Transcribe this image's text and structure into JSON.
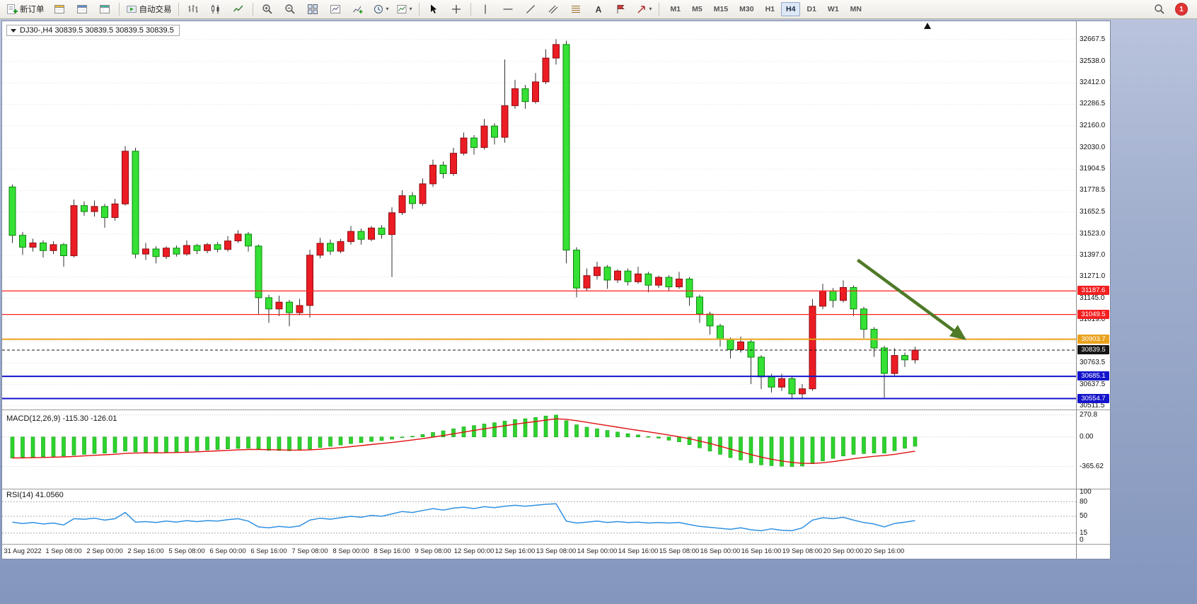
{
  "toolbar": {
    "new_order_label": "新订单",
    "auto_trading_label": "自动交易",
    "timeframes": [
      "M1",
      "M5",
      "M15",
      "M30",
      "H1",
      "H4",
      "D1",
      "W1",
      "MN"
    ],
    "active_timeframe": "H4",
    "notification_count": "1"
  },
  "icons": {
    "text_tool_glyph": "A",
    "dropdown_caret": "▾"
  },
  "chart": {
    "symbol_ohlc": "DJ30-,H4 30839.5 30839.5 30839.5 30839.5",
    "axis_labels": [
      "32667.5",
      "32538.0",
      "32412.0",
      "32286.5",
      "32160.0",
      "32030.0",
      "31904.5",
      "31778.5",
      "31652.5",
      "31523.0",
      "31397.0",
      "31271.0",
      "31145.0",
      "31019.0",
      "30763.5",
      "30637.5",
      "30511.5"
    ],
    "gridlines": [
      32667.5,
      32538.0,
      32412.0,
      32286.5,
      32160.0,
      32030.0,
      31904.5,
      31778.5,
      31652.5,
      31523.0,
      31397.0,
      31271.0,
      31145.0,
      31019.0,
      30893.0,
      30763.5,
      30637.5,
      30511.5
    ],
    "hlines": [
      {
        "value": 31187.6,
        "color": "#ff2020",
        "width": 1.2
      },
      {
        "value": 31049.5,
        "color": "#ff2020",
        "width": 1.2
      },
      {
        "value": 30903.7,
        "color": "#eaa21e",
        "width": 2
      },
      {
        "value": 30685.1,
        "color": "#1414cc",
        "width": 2
      },
      {
        "value": 30554.7,
        "color": "#1414cc",
        "width": 2
      }
    ],
    "current_price": {
      "label": "30839.5",
      "value": 30839.5,
      "color": "#151515"
    },
    "badges": [
      {
        "label": "31187.6",
        "value": 31187.6,
        "color": "#f42020"
      },
      {
        "label": "31049.5",
        "value": 31049.5,
        "color": "#f42020"
      },
      {
        "label": "30903.7",
        "value": 30903.7,
        "color": "#eaa21e"
      },
      {
        "label": "30839.5",
        "value": 30839.5,
        "color": "#151515"
      },
      {
        "label": "30685.1",
        "value": 30685.1,
        "color": "#1414cc"
      },
      {
        "label": "30554.7",
        "value": 30554.7,
        "color": "#1414cc"
      }
    ]
  },
  "macd_panel": {
    "name": "MACD(12,26,9)",
    "values": "-115.30 -126.01",
    "axis": [
      {
        "label": "270.8",
        "v": 270.8
      },
      {
        "label": "0.00",
        "v": 0
      },
      {
        "label": "-365.62",
        "v": -365.62
      }
    ]
  },
  "rsi_panel": {
    "name": "RSI(14)",
    "value": "41.0560",
    "axis": [
      {
        "label": "100",
        "v": 100
      },
      {
        "label": "80",
        "v": 80
      },
      {
        "label": "50",
        "v": 50
      },
      {
        "label": "15",
        "v": 15
      },
      {
        "label": "0",
        "v": 0
      }
    ],
    "levels": [
      80,
      50,
      15
    ]
  },
  "annotation_arrow": {
    "from_index": 82.4,
    "from_price": 31370,
    "to_index": 92.8,
    "to_price": 30908,
    "color": "#4f7a28"
  },
  "chart_data": [
    {
      "type": "candlestick",
      "title": "DJ30- H4",
      "ylim": [
        30490,
        32775
      ],
      "colors": {
        "bull": "#ec1c24",
        "bull_border": "#8f0d12",
        "bear": "#35e135",
        "bear_border": "#0c870c",
        "wick": "#333333"
      },
      "x_ticks": [
        {
          "i": 1,
          "label": "31 Aug 2022"
        },
        {
          "i": 5,
          "label": "1 Sep 08:00"
        },
        {
          "i": 9,
          "label": "2 Sep 00:00"
        },
        {
          "i": 13,
          "label": "2 Sep 16:00"
        },
        {
          "i": 17,
          "label": "5 Sep 08:00"
        },
        {
          "i": 21,
          "label": "6 Sep 00:00"
        },
        {
          "i": 25,
          "label": "6 Sep 16:00"
        },
        {
          "i": 29,
          "label": "7 Sep 08:00"
        },
        {
          "i": 33,
          "label": "8 Sep 00:00"
        },
        {
          "i": 37,
          "label": "8 Sep 16:00"
        },
        {
          "i": 41,
          "label": "9 Sep 08:00"
        },
        {
          "i": 45,
          "label": "12 Sep 00:00"
        },
        {
          "i": 49,
          "label": "12 Sep 16:00"
        },
        {
          "i": 53,
          "label": "13 Sep 08:00"
        },
        {
          "i": 57,
          "label": "14 Sep 00:00"
        },
        {
          "i": 61,
          "label": "14 Sep 16:00"
        },
        {
          "i": 65,
          "label": "15 Sep 08:00"
        },
        {
          "i": 69,
          "label": "16 Sep 00:00"
        },
        {
          "i": 73,
          "label": "16 Sep 16:00"
        },
        {
          "i": 77,
          "label": "19 Sep 08:00"
        },
        {
          "i": 81,
          "label": "20 Sep 00:00"
        },
        {
          "i": 85,
          "label": "20 Sep 16:00"
        }
      ],
      "candles": [
        [
          31800,
          31815,
          31470,
          31515
        ],
        [
          31515,
          31535,
          31400,
          31445
        ],
        [
          31445,
          31495,
          31420,
          31470
        ],
        [
          31470,
          31485,
          31385,
          31425
        ],
        [
          31425,
          31480,
          31405,
          31460
        ],
        [
          31460,
          31470,
          31330,
          31395
        ],
        [
          31395,
          31725,
          31385,
          31690
        ],
        [
          31690,
          31715,
          31630,
          31655
        ],
        [
          31655,
          31720,
          31625,
          31685
        ],
        [
          31685,
          31700,
          31560,
          31620
        ],
        [
          31620,
          31730,
          31600,
          31700
        ],
        [
          31700,
          32040,
          31690,
          32010
        ],
        [
          32010,
          32030,
          31380,
          31405
        ],
        [
          31405,
          31470,
          31370,
          31435
        ],
        [
          31435,
          31450,
          31350,
          31390
        ],
        [
          31390,
          31450,
          31375,
          31440
        ],
        [
          31440,
          31455,
          31390,
          31405
        ],
        [
          31405,
          31485,
          31395,
          31455
        ],
        [
          31455,
          31465,
          31405,
          31425
        ],
        [
          31425,
          31470,
          31410,
          31460
        ],
        [
          31460,
          31475,
          31415,
          31432
        ],
        [
          31432,
          31510,
          31420,
          31482
        ],
        [
          31482,
          31545,
          31470,
          31522
        ],
        [
          31522,
          31535,
          31420,
          31452
        ],
        [
          31452,
          31460,
          31050,
          31148
        ],
        [
          31148,
          31165,
          31000,
          31082
        ],
        [
          31082,
          31160,
          31040,
          31122
        ],
        [
          31122,
          31135,
          30980,
          31060
        ],
        [
          31060,
          31140,
          31045,
          31102
        ],
        [
          31102,
          31430,
          31030,
          31398
        ],
        [
          31398,
          31500,
          31380,
          31468
        ],
        [
          31468,
          31490,
          31400,
          31422
        ],
        [
          31422,
          31495,
          31410,
          31478
        ],
        [
          31478,
          31570,
          31460,
          31538
        ],
        [
          31538,
          31555,
          31460,
          31492
        ],
        [
          31492,
          31570,
          31480,
          31558
        ],
        [
          31558,
          31575,
          31495,
          31520
        ],
        [
          31520,
          31680,
          31270,
          31648
        ],
        [
          31648,
          31780,
          31635,
          31748
        ],
        [
          31748,
          31770,
          31670,
          31702
        ],
        [
          31702,
          31850,
          31690,
          31818
        ],
        [
          31818,
          31960,
          31800,
          31928
        ],
        [
          31928,
          31950,
          31850,
          31878
        ],
        [
          31878,
          32030,
          31865,
          31998
        ],
        [
          31998,
          32120,
          31985,
          32088
        ],
        [
          32088,
          32105,
          31990,
          32032
        ],
        [
          32032,
          32200,
          32020,
          32158
        ],
        [
          32158,
          32175,
          32050,
          32092
        ],
        [
          32092,
          32550,
          32060,
          32278
        ],
        [
          32278,
          32430,
          32260,
          32378
        ],
        [
          32378,
          32400,
          32260,
          32302
        ],
        [
          32302,
          32470,
          32290,
          32418
        ],
        [
          32418,
          32610,
          32405,
          32558
        ],
        [
          32558,
          32670,
          32520,
          32638
        ],
        [
          32638,
          32660,
          31350,
          31428
        ],
        [
          31428,
          31445,
          31150,
          31205
        ],
        [
          31205,
          31320,
          31185,
          31278
        ],
        [
          31278,
          31360,
          31255,
          31328
        ],
        [
          31328,
          31340,
          31200,
          31252
        ],
        [
          31252,
          31315,
          31235,
          31305
        ],
        [
          31305,
          31320,
          31220,
          31242
        ],
        [
          31242,
          31330,
          31230,
          31288
        ],
        [
          31288,
          31300,
          31180,
          31222
        ],
        [
          31222,
          31278,
          31205,
          31268
        ],
        [
          31268,
          31280,
          31190,
          31212
        ],
        [
          31212,
          31300,
          31200,
          31258
        ],
        [
          31258,
          31270,
          31100,
          31152
        ],
        [
          31152,
          31165,
          31000,
          31052
        ],
        [
          31052,
          31065,
          30930,
          30982
        ],
        [
          30982,
          30995,
          30860,
          30902
        ],
        [
          30902,
          30915,
          30790,
          30842
        ],
        [
          30842,
          30920,
          30825,
          30888
        ],
        [
          30888,
          30900,
          30640,
          30798
        ],
        [
          30798,
          30810,
          30610,
          30682
        ],
        [
          30682,
          30700,
          30590,
          30622
        ],
        [
          30622,
          30700,
          30600,
          30672
        ],
        [
          30672,
          30685,
          30550,
          30582
        ],
        [
          30582,
          30640,
          30555,
          30612
        ],
        [
          30612,
          31140,
          30600,
          31098
        ],
        [
          31098,
          31230,
          31080,
          31188
        ],
        [
          31188,
          31205,
          31090,
          31132
        ],
        [
          31132,
          31250,
          31120,
          31208
        ],
        [
          31208,
          31220,
          31040,
          31082
        ],
        [
          31082,
          31095,
          30910,
          30962
        ],
        [
          30962,
          30975,
          30800,
          30852
        ],
        [
          30852,
          30865,
          30560,
          30702
        ],
        [
          30702,
          30850,
          30690,
          30808
        ],
        [
          30808,
          30825,
          30740,
          30782
        ],
        [
          30782,
          30860,
          30760,
          30839.5
        ]
      ]
    },
    {
      "type": "bar",
      "title": "MACD(12,26,9)",
      "ylim": [
        -640,
        330
      ],
      "bar_color": "#2ed32e",
      "bar_border": "#11a011",
      "signal_color": "#e01010",
      "values": [
        -260,
        -255,
        -250,
        -245,
        -240,
        -235,
        -225,
        -215,
        -205,
        -200,
        -195,
        -175,
        -185,
        -190,
        -195,
        -190,
        -185,
        -178,
        -170,
        -162,
        -155,
        -148,
        -142,
        -140,
        -155,
        -165,
        -168,
        -170,
        -165,
        -150,
        -130,
        -115,
        -100,
        -82,
        -70,
        -55,
        -45,
        -28,
        -8,
        8,
        30,
        55,
        75,
        100,
        125,
        140,
        160,
        175,
        195,
        215,
        225,
        240,
        258,
        270.8,
        200,
        150,
        120,
        100,
        80,
        60,
        40,
        25,
        5,
        -15,
        -40,
        -60,
        -95,
        -135,
        -175,
        -215,
        -255,
        -285,
        -320,
        -345,
        -355,
        -362,
        -365.6,
        -360,
        -330,
        -295,
        -265,
        -235,
        -215,
        -205,
        -200,
        -200,
        -170,
        -140,
        -115.3
      ]
    },
    {
      "type": "line",
      "title": "RSI(14)",
      "ylim": [
        0,
        100
      ],
      "line_color": "#2f90e0",
      "values": [
        38,
        35,
        37,
        34,
        36,
        32,
        45,
        44,
        46,
        42,
        45,
        58,
        38,
        39,
        37,
        40,
        38,
        41,
        39,
        41,
        40,
        43,
        45,
        40,
        28,
        26,
        29,
        27,
        30,
        42,
        46,
        44,
        47,
        50,
        48,
        52,
        50,
        55,
        60,
        58,
        62,
        66,
        63,
        67,
        69,
        66,
        70,
        68,
        71,
        73,
        71,
        73,
        75,
        76,
        40,
        36,
        38,
        40,
        37,
        39,
        37,
        38,
        36,
        37,
        36,
        37,
        33,
        29,
        27,
        25,
        23,
        26,
        22,
        20,
        24,
        21,
        20,
        26,
        42,
        47,
        45,
        48,
        42,
        37,
        34,
        28,
        35,
        38,
        41.06
      ]
    }
  ]
}
